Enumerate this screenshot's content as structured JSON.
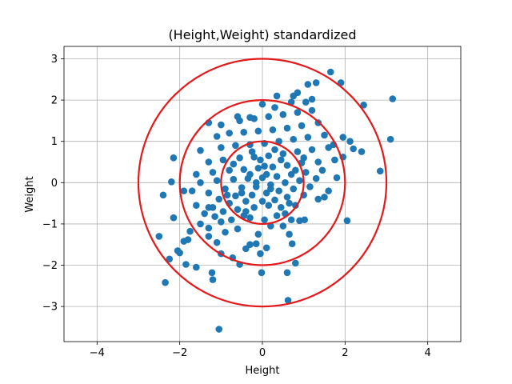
{
  "chart_data": {
    "type": "scatter",
    "title": "(Height,Weight) standardized",
    "xlabel": "Height",
    "ylabel": "Weight",
    "xlim": [
      -4.8,
      4.8
    ],
    "ylim": [
      -3.85,
      3.3
    ],
    "xticks": [
      -4,
      -2,
      0,
      2,
      4
    ],
    "yticks": [
      -3,
      -2,
      -1,
      0,
      1,
      2,
      3
    ],
    "xtick_labels": [
      "−4",
      "−2",
      "0",
      "2",
      "4"
    ],
    "ytick_labels": [
      "−3",
      "−2",
      "−1",
      "0",
      "1",
      "2",
      "3"
    ],
    "grid": true,
    "point_color": "#1f77b4",
    "circle_color": "#e31a1c",
    "circles": [
      {
        "center": [
          0,
          0
        ],
        "radius": 1
      },
      {
        "center": [
          0,
          0
        ],
        "radius": 2
      },
      {
        "center": [
          0,
          0
        ],
        "radius": 3
      }
    ],
    "points": [
      [
        -1.05,
        -3.55
      ],
      [
        0.62,
        -2.85
      ],
      [
        -2.35,
        -2.42
      ],
      [
        -1.2,
        -2.35
      ],
      [
        -1.22,
        -2.18
      ],
      [
        -0.02,
        -2.18
      ],
      [
        0.6,
        -2.18
      ],
      [
        -1.6,
        -2.05
      ],
      [
        -0.55,
        -1.98
      ],
      [
        -1.85,
        -1.98
      ],
      [
        0.8,
        -1.95
      ],
      [
        -2.0,
        -1.7
      ],
      [
        -2.25,
        -1.85
      ],
      [
        -0.72,
        -1.82
      ],
      [
        -0.05,
        -1.72
      ],
      [
        -2.05,
        -1.65
      ],
      [
        -1.0,
        -1.72
      ],
      [
        -0.4,
        -1.6
      ],
      [
        -1.9,
        -1.42
      ],
      [
        -1.8,
        -1.38
      ],
      [
        -2.5,
        -1.3
      ],
      [
        -1.3,
        -1.3
      ],
      [
        -0.3,
        -1.5
      ],
      [
        0.1,
        -1.58
      ],
      [
        -0.15,
        -1.48
      ],
      [
        0.72,
        -1.48
      ],
      [
        -1.1,
        -1.45
      ],
      [
        -0.9,
        -1.2
      ],
      [
        -1.75,
        -1.18
      ],
      [
        -0.1,
        -1.25
      ],
      [
        -0.6,
        -1.12
      ],
      [
        0.2,
        -1.05
      ],
      [
        0.5,
        -1.05
      ],
      [
        -1.3,
        -1.1
      ],
      [
        0.65,
        -1.25
      ],
      [
        -1.5,
        -1.0
      ],
      [
        -1.0,
        -0.95
      ],
      [
        -0.75,
        -0.9
      ],
      [
        -0.3,
        -0.85
      ],
      [
        0.05,
        -0.9
      ],
      [
        0.35,
        -0.8
      ],
      [
        0.9,
        -0.92
      ],
      [
        1.02,
        -0.9
      ],
      [
        2.05,
        -0.92
      ],
      [
        -1.15,
        -0.82
      ],
      [
        -0.45,
        -0.8
      ],
      [
        -2.15,
        -0.85
      ],
      [
        0.7,
        -0.9
      ],
      [
        -1.4,
        -0.75
      ],
      [
        -0.95,
        -0.7
      ],
      [
        -0.6,
        -0.65
      ],
      [
        -0.2,
        -0.6
      ],
      [
        0.15,
        -0.55
      ],
      [
        0.45,
        -0.6
      ],
      [
        0.8,
        -0.55
      ],
      [
        1.35,
        -0.4
      ],
      [
        -1.3,
        -0.6
      ],
      [
        -1.6,
        -0.55
      ],
      [
        -0.8,
        -0.5
      ],
      [
        -0.4,
        -0.45
      ],
      [
        0.0,
        -0.45
      ],
      [
        0.3,
        -0.42
      ],
      [
        0.6,
        -0.35
      ],
      [
        1.0,
        -0.3
      ],
      [
        1.5,
        -0.35
      ],
      [
        -2.4,
        -0.3
      ],
      [
        -1.05,
        -0.4
      ],
      [
        -0.65,
        -0.32
      ],
      [
        -0.25,
        -0.3
      ],
      [
        0.1,
        -0.25
      ],
      [
        0.4,
        -0.2
      ],
      [
        0.75,
        -0.15
      ],
      [
        1.15,
        -0.1
      ],
      [
        1.6,
        -0.2
      ],
      [
        -1.7,
        -0.2
      ],
      [
        -1.3,
        -0.25
      ],
      [
        -0.9,
        -0.15
      ],
      [
        -0.5,
        -0.12
      ],
      [
        -0.15,
        -0.1
      ],
      [
        0.2,
        -0.05
      ],
      [
        0.55,
        0.0
      ],
      [
        0.9,
        0.05
      ],
      [
        1.3,
        0.1
      ],
      [
        1.8,
        0.12
      ],
      [
        -2.2,
        0.02
      ],
      [
        -1.9,
        -0.2
      ],
      [
        -1.5,
        0.0
      ],
      [
        -1.1,
        0.05
      ],
      [
        -0.7,
        0.08
      ],
      [
        -0.35,
        0.1
      ],
      [
        0.0,
        0.12
      ],
      [
        0.35,
        0.15
      ],
      [
        0.7,
        0.2
      ],
      [
        1.05,
        0.25
      ],
      [
        1.45,
        0.3
      ],
      [
        -1.6,
        0.2
      ],
      [
        -1.2,
        0.25
      ],
      [
        -0.8,
        0.3
      ],
      [
        -0.45,
        0.32
      ],
      [
        -0.1,
        0.35
      ],
      [
        0.25,
        0.38
      ],
      [
        0.6,
        0.42
      ],
      [
        0.95,
        0.48
      ],
      [
        1.35,
        0.5
      ],
      [
        1.75,
        0.55
      ],
      [
        -1.3,
        0.5
      ],
      [
        -0.95,
        0.55
      ],
      [
        -0.55,
        0.6
      ],
      [
        -0.2,
        0.62
      ],
      [
        0.15,
        0.65
      ],
      [
        0.5,
        0.7
      ],
      [
        0.85,
        0.75
      ],
      [
        1.2,
        0.8
      ],
      [
        1.6,
        0.85
      ],
      [
        2.2,
        0.82
      ],
      [
        2.4,
        0.75
      ],
      [
        2.85,
        0.28
      ],
      [
        -1.5,
        0.78
      ],
      [
        -1.0,
        0.85
      ],
      [
        -0.65,
        0.9
      ],
      [
        -0.3,
        0.92
      ],
      [
        0.05,
        0.95
      ],
      [
        0.4,
        1.0
      ],
      [
        0.75,
        1.05
      ],
      [
        1.1,
        1.1
      ],
      [
        1.5,
        1.15
      ],
      [
        1.95,
        1.1
      ],
      [
        -2.15,
        0.6
      ],
      [
        -1.1,
        1.12
      ],
      [
        -0.8,
        1.2
      ],
      [
        -0.45,
        1.22
      ],
      [
        -0.1,
        1.25
      ],
      [
        0.25,
        1.28
      ],
      [
        0.6,
        1.32
      ],
      [
        0.95,
        1.38
      ],
      [
        1.35,
        1.45
      ],
      [
        -1.0,
        1.4
      ],
      [
        -1.3,
        1.45
      ],
      [
        -0.55,
        1.5
      ],
      [
        -0.2,
        1.55
      ],
      [
        0.15,
        1.6
      ],
      [
        0.5,
        1.65
      ],
      [
        0.85,
        1.7
      ],
      [
        1.2,
        1.75
      ],
      [
        -0.6,
        1.6
      ],
      [
        0.0,
        1.9
      ],
      [
        0.3,
        1.82
      ],
      [
        0.7,
        1.95
      ],
      [
        1.05,
        1.95
      ],
      [
        -0.3,
        1.58
      ],
      [
        0.35,
        2.1
      ],
      [
        0.75,
        2.1
      ],
      [
        0.85,
        2.18
      ],
      [
        1.1,
        2.38
      ],
      [
        1.3,
        2.42
      ],
      [
        1.2,
        2.02
      ],
      [
        1.65,
        2.68
      ],
      [
        1.9,
        2.42
      ],
      [
        2.45,
        1.88
      ],
      [
        3.15,
        2.03
      ],
      [
        3.1,
        1.05
      ],
      [
        2.12,
        1.0
      ],
      [
        1.95,
        0.62
      ],
      [
        1.72,
        0.92
      ],
      [
        0.05,
        0.4
      ],
      [
        -0.05,
        0.55
      ],
      [
        0.1,
        0.2
      ],
      [
        -0.15,
        0.0
      ],
      [
        0.2,
        -0.15
      ],
      [
        -0.3,
        0.2
      ],
      [
        0.45,
        0.55
      ],
      [
        -0.5,
        -0.25
      ],
      [
        0.65,
        -0.5
      ],
      [
        -0.7,
        0.45
      ],
      [
        0.8,
        0.3
      ],
      [
        -0.85,
        -0.3
      ],
      [
        1.0,
        0.6
      ],
      [
        -1.2,
        -0.6
      ],
      [
        0.3,
        0.8
      ],
      [
        -0.25,
        0.75
      ],
      [
        0.55,
        -0.75
      ],
      [
        -0.4,
        -0.7
      ]
    ]
  }
}
